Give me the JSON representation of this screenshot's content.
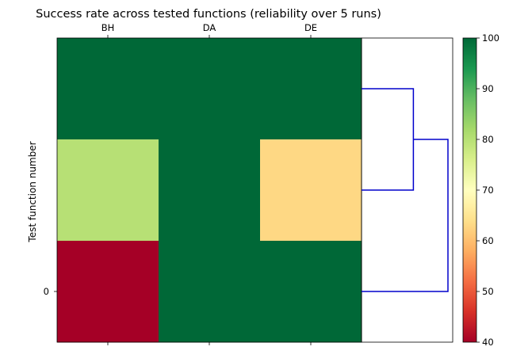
{
  "chart_data": {
    "type": "heatmap",
    "title": "Success rate across tested  functions (reliability over 5 runs)",
    "ylabel": "Test function number",
    "xlabel": "",
    "columns": [
      "BH",
      "DA",
      "DE"
    ],
    "y_tick_labels": [
      "0"
    ],
    "rows": [
      {
        "values": [
          100,
          100,
          100
        ]
      },
      {
        "values": [
          80,
          100,
          63
        ]
      },
      {
        "values": [
          40,
          100,
          100
        ]
      }
    ],
    "colorbar": {
      "min": 40,
      "max": 100,
      "ticks": [
        40,
        50,
        60,
        70,
        80,
        90,
        100
      ],
      "colormap": "RdYlGn"
    },
    "dendrogram": {
      "color": "#0000cc",
      "orientation": "right",
      "links": [
        {
          "left": 0,
          "right": 1,
          "height": 0.6
        },
        {
          "left": "0-1",
          "right": 2,
          "height": 1.0
        }
      ]
    }
  }
}
